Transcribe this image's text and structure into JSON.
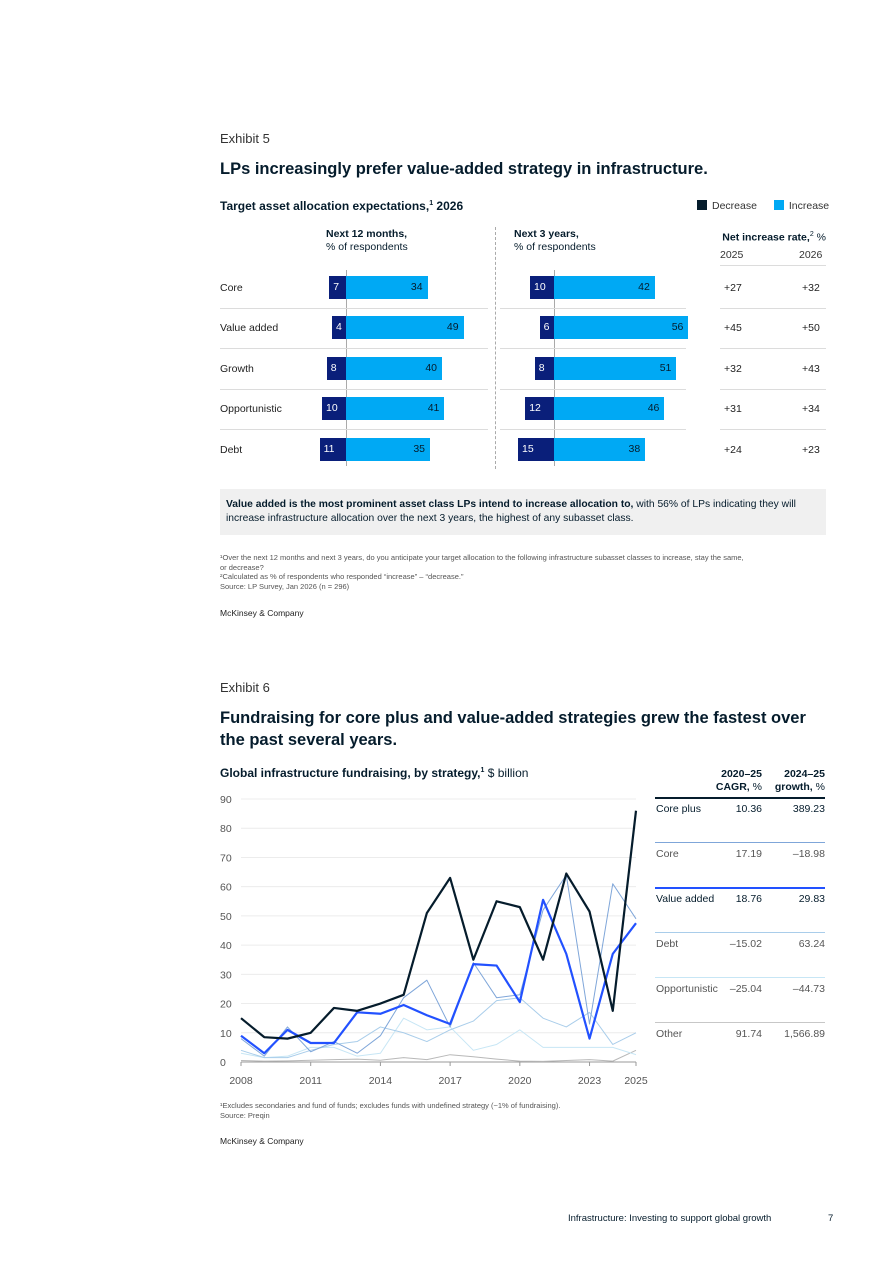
{
  "exhibit5": {
    "label": "Exhibit 5",
    "title": "LPs increasingly prefer value-added strategy in infrastructure.",
    "subtitle": "Target asset allocation expectations,",
    "subtitle_sup": "1",
    "subtitle_year": " 2026",
    "legend": [
      {
        "label": "Decrease",
        "color": "#051c2c"
      },
      {
        "label": "Increase",
        "color": "#00a9f4"
      }
    ],
    "col1_title": "Next 12 months,",
    "col1_sub": "% of respondents",
    "col2_title": "Next 3 years,",
    "col2_sub": "% of respondents",
    "col3_title": "Net increase rate,",
    "col3_sup": "2",
    "col3_unit": " %",
    "year_2025": "2025",
    "year_2026": "2026",
    "rows": [
      {
        "label": "Core",
        "m12_dec": 7,
        "m12_inc": 34,
        "y3_dec": 10,
        "y3_inc": 42,
        "rate_2025": "+27",
        "rate_2026": "+32"
      },
      {
        "label": "Value added",
        "m12_dec": 4,
        "m12_inc": 49,
        "y3_dec": 6,
        "y3_inc": 56,
        "rate_2025": "+45",
        "rate_2026": "+50"
      },
      {
        "label": "Growth",
        "m12_dec": 8,
        "m12_inc": 40,
        "y3_dec": 8,
        "y3_inc": 51,
        "rate_2025": "+32",
        "rate_2026": "+43"
      },
      {
        "label": "Opportunistic",
        "m12_dec": 10,
        "m12_inc": 41,
        "y3_dec": 12,
        "y3_inc": 46,
        "rate_2025": "+31",
        "rate_2026": "+34"
      },
      {
        "label": "Debt",
        "m12_dec": 11,
        "m12_inc": 35,
        "y3_dec": 15,
        "y3_inc": 38,
        "rate_2025": "+24",
        "rate_2026": "+23"
      }
    ],
    "callout_bold": "Value added is the most prominent asset class LPs intend to increase allocation to,",
    "callout_rest": " with 56% of LPs indicating they will increase infrastructure allocation over the next 3 years, the highest of any subasset class.",
    "footnote1": "¹Over the next 12 months and next 3 years, do you anticipate your target allocation to the following infrastructure subasset classes to increase, stay the same,",
    "footnote1b": " or decrease?",
    "footnote2": "²Calculated as % of respondents who responded “increase” – “decrease.”",
    "source": " Source: LP Survey, Jan 2026 (n = 296)",
    "brand": "McKinsey & Company"
  },
  "exhibit6": {
    "label": "Exhibit 6",
    "title_line1": "Fundraising for core plus and value-added strategies grew the fastest over",
    "title_line2": "the past several years.",
    "subtitle": "Global infrastructure fundraising, by strategy,",
    "subtitle_sup": "1",
    "subtitle_unit": " $ billion",
    "table_h1_line1": "2020–25",
    "table_h1_line2": "CAGR,",
    "table_h1_unit": " %",
    "table_h2_line1": "2024–25",
    "table_h2_line2": "growth,",
    "table_h2_unit": " %",
    "table_rows": [
      {
        "label": "Core plus",
        "cagr": "10.36",
        "growth": "389.23",
        "bold": true,
        "line_color": "#051c2c"
      },
      {
        "label": "Core",
        "cagr": "17.19",
        "growth": "–18.98",
        "bold": false,
        "line_color": "#7fa6d9"
      },
      {
        "label": "Value added",
        "cagr": "18.76",
        "growth": "29.83",
        "bold": true,
        "line_color": "#2251ff"
      },
      {
        "label": "Debt",
        "cagr": "–15.02",
        "growth": "63.24",
        "bold": false,
        "line_color": "#a9cdea"
      },
      {
        "label": "Opportunistic",
        "cagr": "–25.04",
        "growth": "–44.73",
        "bold": false,
        "line_color": "#c7e6f5"
      },
      {
        "label": "Other",
        "cagr": "91.74",
        "growth": "1,566.89",
        "bold": false,
        "line_color": "#c7c7c7"
      }
    ],
    "footnote1": "¹Excludes secondaries and fund of funds; excludes funds with undefined strategy (~1% of fundraising).",
    "source": " Source: Preqin",
    "brand": "McKinsey & Company"
  },
  "chart_data": {
    "type": "line",
    "x": [
      2008,
      2009,
      2010,
      2011,
      2012,
      2013,
      2014,
      2015,
      2016,
      2017,
      2018,
      2019,
      2020,
      2021,
      2022,
      2023,
      2024,
      2025
    ],
    "x_tick_labels": [
      "2008",
      "2011",
      "2014",
      "2017",
      "2020",
      "2023",
      "2025"
    ],
    "y_tick_labels": [
      "0",
      "10",
      "20",
      "30",
      "40",
      "50",
      "60",
      "70",
      "80",
      "90"
    ],
    "ylim": [
      0,
      90
    ],
    "xlim": [
      2008,
      2025
    ],
    "grid": true,
    "series": [
      {
        "name": "Other",
        "color": "#b8b8b8",
        "width": 1,
        "values": [
          0.5,
          0.3,
          0.4,
          0.6,
          0.8,
          1.0,
          0.6,
          1.5,
          0.8,
          2.5,
          1.8,
          1.0,
          0.3,
          0.2,
          0.5,
          0.8,
          0.3,
          4
        ]
      },
      {
        "name": "Opportunistic",
        "color": "#c7e6f5",
        "width": 1,
        "values": [
          3,
          1.5,
          2,
          5,
          5,
          2,
          3,
          15,
          11,
          12,
          4,
          6,
          11,
          5,
          5,
          5,
          5,
          2.5
        ]
      },
      {
        "name": "Debt",
        "color": "#a9cdea",
        "width": 1,
        "values": [
          4,
          1.5,
          1.5,
          4,
          6,
          7,
          12,
          10,
          7,
          11,
          14,
          21,
          22,
          15,
          12,
          17,
          6,
          10
        ]
      },
      {
        "name": "Core",
        "color": "#7fa6d9",
        "width": 1,
        "values": [
          8,
          2,
          12,
          3.5,
          7,
          3,
          9,
          22,
          28,
          12,
          34,
          22,
          23,
          52,
          64,
          13,
          61,
          49
        ]
      },
      {
        "name": "Value added",
        "color": "#2251ff",
        "width": 2.2,
        "values": [
          9,
          3,
          11,
          6.5,
          6.5,
          17,
          16.5,
          19.5,
          16,
          13,
          33.5,
          33,
          20.5,
          55.5,
          37,
          8,
          37,
          47.5
        ]
      },
      {
        "name": "Core plus",
        "color": "#051c2c",
        "width": 2.2,
        "values": [
          15,
          8.5,
          8,
          10,
          18.5,
          17.5,
          20,
          23,
          51,
          63,
          35,
          55,
          53,
          35,
          64.5,
          51.5,
          17.5,
          86
        ]
      }
    ]
  },
  "page_footer": {
    "title": "Infrastructure: Investing to support global growth",
    "page_number": "7"
  }
}
